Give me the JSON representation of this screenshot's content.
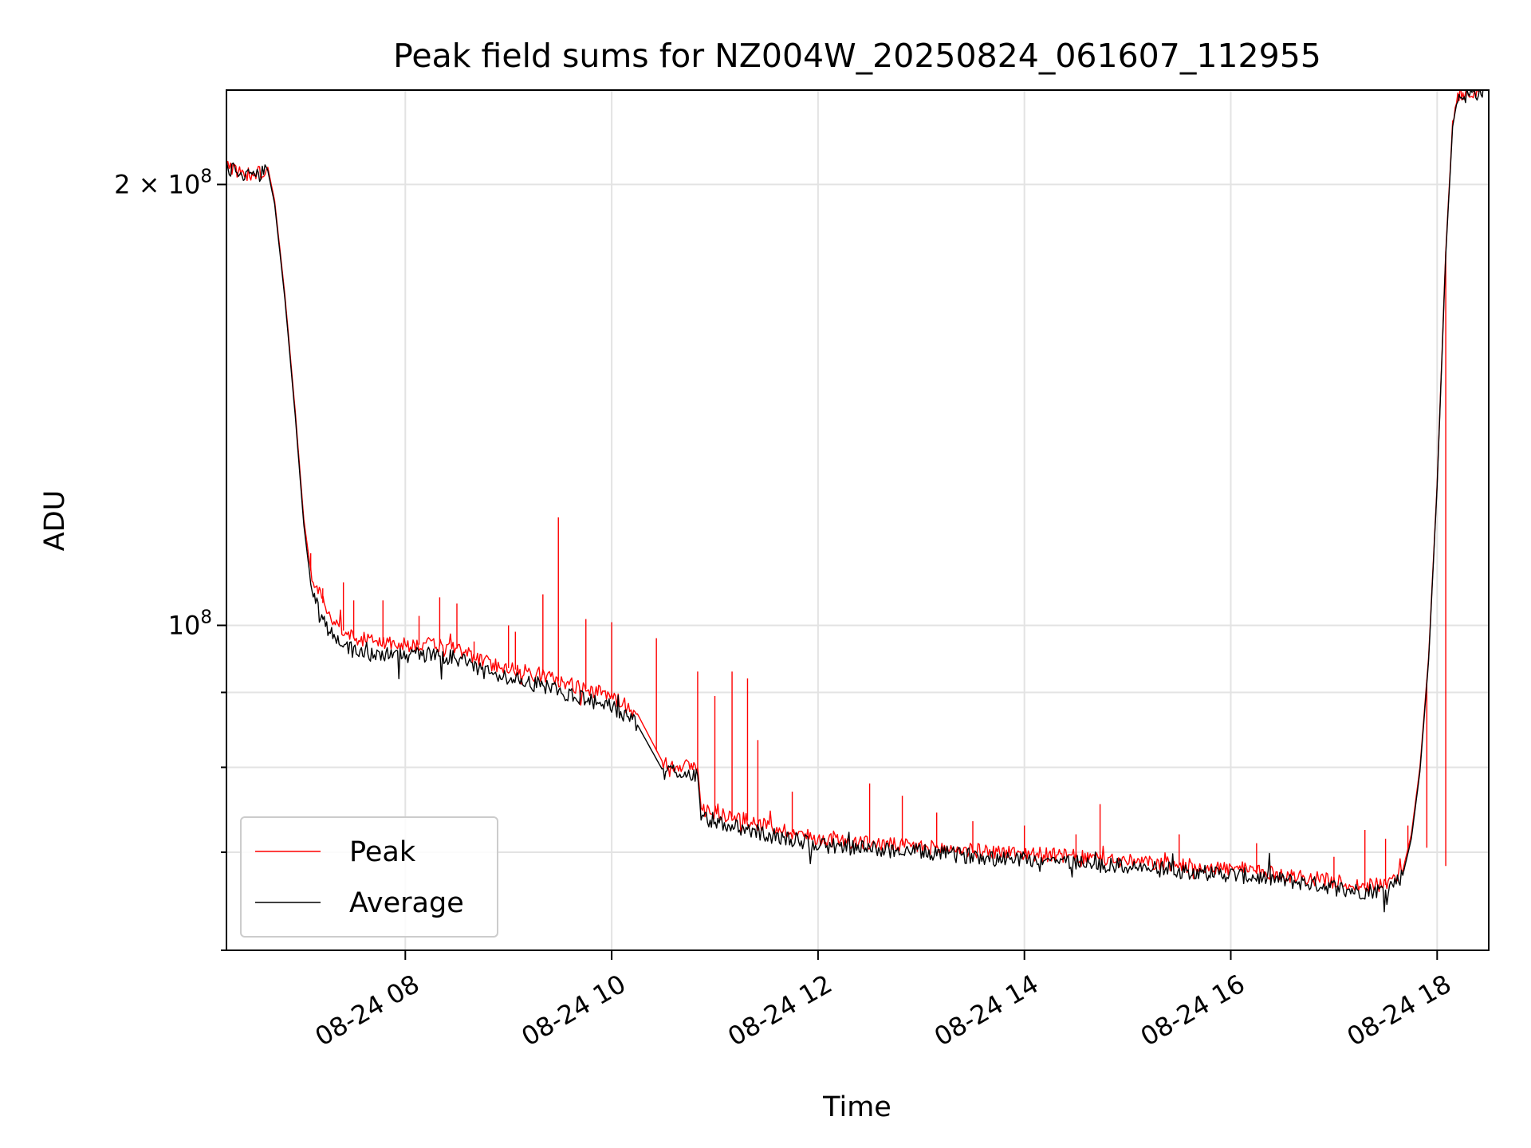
{
  "chart_data": {
    "type": "line",
    "title": "Peak field sums for NZ004W_20250824_061607_112955",
    "xlabel": "Time",
    "ylabel": "ADU",
    "x_axis": {
      "type": "time",
      "range": [
        "2025-08-24 06:16",
        "2025-08-24 18:30"
      ],
      "ticks": [
        {
          "value": "2025-08-24 08:00",
          "label": "08-24 08"
        },
        {
          "value": "2025-08-24 10:00",
          "label": "08-24 10"
        },
        {
          "value": "2025-08-24 12:00",
          "label": "08-24 12"
        },
        {
          "value": "2025-08-24 14:00",
          "label": "08-24 14"
        },
        {
          "value": "2025-08-24 16:00",
          "label": "08-24 16"
        },
        {
          "value": "2025-08-24 18:00",
          "label": "08-24 18"
        }
      ]
    },
    "y_axis": {
      "scale": "log",
      "range": [
        60000000,
        232000000
      ],
      "major_ticks": [
        {
          "value": 100000000,
          "label_base": "10",
          "label_exp": "8",
          "label_prefix": ""
        },
        {
          "value": 200000000,
          "label_base": "10",
          "label_exp": "8",
          "label_prefix": "2 × "
        }
      ],
      "minor_ticks": [
        60000000,
        70000000,
        80000000,
        90000000
      ]
    },
    "grid": true,
    "legend": {
      "position": "lower-left"
    },
    "series": [
      {
        "name": "Peak",
        "color": "#ff0000",
        "points": [
          [
            "2025-08-24 06:16",
            206000000
          ],
          [
            "2025-08-24 06:20",
            205000000
          ],
          [
            "2025-08-24 06:28",
            203500000
          ],
          [
            "2025-08-24 06:36",
            204000000
          ],
          [
            "2025-08-24 06:40",
            205500000
          ],
          [
            "2025-08-24 06:44",
            195000000
          ],
          [
            "2025-08-24 06:50",
            168000000
          ],
          [
            "2025-08-24 06:56",
            140000000
          ],
          [
            "2025-08-24 07:01",
            118000000
          ],
          [
            "2025-08-24 07:05",
            109000000
          ],
          [
            "2025-08-24 07:10",
            105000000
          ],
          [
            "2025-08-24 07:15",
            101500000
          ],
          [
            "2025-08-24 07:20",
            100000000
          ],
          [
            "2025-08-24 07:30",
            98000000
          ],
          [
            "2025-08-24 07:45",
            97500000
          ],
          [
            "2025-08-24 08:00",
            97000000
          ],
          [
            "2025-08-24 08:15",
            97000000
          ],
          [
            "2025-08-24 08:30",
            96500000
          ],
          [
            "2025-08-24 08:45",
            94500000
          ],
          [
            "2025-08-24 09:00",
            93500000
          ],
          [
            "2025-08-24 09:20",
            92500000
          ],
          [
            "2025-08-24 09:30",
            91500000
          ],
          [
            "2025-08-24 09:45",
            90500000
          ],
          [
            "2025-08-24 10:00",
            89500000
          ],
          [
            "2025-08-24 10:15",
            87000000
          ],
          [
            "2025-08-24 10:30",
            80500000
          ],
          [
            "2025-08-24 10:50",
            80000000
          ],
          [
            "2025-08-24 10:52",
            75000000
          ],
          [
            "2025-08-24 11:10",
            74000000
          ],
          [
            "2025-08-24 11:30",
            73000000
          ],
          [
            "2025-08-24 12:00",
            71500000
          ],
          [
            "2025-08-24 12:30",
            71000000
          ],
          [
            "2025-08-24 13:00",
            70600000
          ],
          [
            "2025-08-24 13:30",
            70200000
          ],
          [
            "2025-08-24 14:00",
            69900000
          ],
          [
            "2025-08-24 14:30",
            69500000
          ],
          [
            "2025-08-24 15:00",
            69000000
          ],
          [
            "2025-08-24 15:30",
            68600000
          ],
          [
            "2025-08-24 16:00",
            68200000
          ],
          [
            "2025-08-24 16:30",
            67600000
          ],
          [
            "2025-08-24 17:00",
            66900000
          ],
          [
            "2025-08-24 17:15",
            66400000
          ],
          [
            "2025-08-24 17:30",
            66500000
          ],
          [
            "2025-08-24 17:40",
            68000000
          ],
          [
            "2025-08-24 17:45",
            72000000
          ],
          [
            "2025-08-24 17:50",
            80000000
          ],
          [
            "2025-08-24 17:55",
            95000000
          ],
          [
            "2025-08-24 18:00",
            125000000
          ],
          [
            "2025-08-24 18:05",
            180000000
          ],
          [
            "2025-08-24 18:09",
            220000000
          ],
          [
            "2025-08-24 18:12",
            230000000
          ],
          [
            "2025-08-24 18:30",
            232000000
          ]
        ],
        "spikes": [
          [
            "2025-08-24 07:05",
            112000000
          ],
          [
            "2025-08-24 07:12",
            106000000
          ],
          [
            "2025-08-24 07:24",
            107000000
          ],
          [
            "2025-08-24 07:30",
            104000000
          ],
          [
            "2025-08-24 07:47",
            104000000
          ],
          [
            "2025-08-24 08:08",
            101500000
          ],
          [
            "2025-08-24 08:20",
            104500000
          ],
          [
            "2025-08-24 08:30",
            103500000
          ],
          [
            "2025-08-24 08:40",
            97500000
          ],
          [
            "2025-08-24 09:00",
            100000000
          ],
          [
            "2025-08-24 09:04",
            99000000
          ],
          [
            "2025-08-24 09:20",
            105000000
          ],
          [
            "2025-08-24 09:29",
            118500000
          ],
          [
            "2025-08-24 09:45",
            101000000
          ],
          [
            "2025-08-24 10:00",
            100500000
          ],
          [
            "2025-08-24 10:26",
            98000000
          ],
          [
            "2025-08-24 10:50",
            93000000
          ],
          [
            "2025-08-24 11:00",
            89500000
          ],
          [
            "2025-08-24 11:10",
            93000000
          ],
          [
            "2025-08-24 11:19",
            92000000
          ],
          [
            "2025-08-24 11:25",
            83500000
          ],
          [
            "2025-08-24 11:45",
            77000000
          ],
          [
            "2025-08-24 12:30",
            78000000
          ],
          [
            "2025-08-24 12:49",
            76500000
          ],
          [
            "2025-08-24 13:09",
            74500000
          ],
          [
            "2025-08-24 13:30",
            73500000
          ],
          [
            "2025-08-24 14:00",
            73000000
          ],
          [
            "2025-08-24 14:30",
            72000000
          ],
          [
            "2025-08-24 14:44",
            75500000
          ],
          [
            "2025-08-24 15:30",
            72000000
          ],
          [
            "2025-08-24 16:15",
            71000000
          ],
          [
            "2025-08-24 17:00",
            69500000
          ],
          [
            "2025-08-24 17:18",
            72500000
          ],
          [
            "2025-08-24 17:30",
            71500000
          ],
          [
            "2025-08-24 17:43",
            73000000
          ],
          [
            "2025-08-24 17:54",
            70500000
          ],
          [
            "2025-08-24 18:05",
            68500000
          ]
        ]
      },
      {
        "name": "Average",
        "color": "#000000",
        "points": [
          [
            "2025-08-24 06:16",
            205500000
          ],
          [
            "2025-08-24 06:20",
            204000000
          ],
          [
            "2025-08-24 06:28",
            202500000
          ],
          [
            "2025-08-24 06:36",
            203000000
          ],
          [
            "2025-08-24 06:40",
            204500000
          ],
          [
            "2025-08-24 06:44",
            194000000
          ],
          [
            "2025-08-24 06:50",
            167000000
          ],
          [
            "2025-08-24 06:56",
            139000000
          ],
          [
            "2025-08-24 07:01",
            117000000
          ],
          [
            "2025-08-24 07:05",
            107000000
          ],
          [
            "2025-08-24 07:10",
            102500000
          ],
          [
            "2025-08-24 07:15",
            99500000
          ],
          [
            "2025-08-24 07:20",
            97500000
          ],
          [
            "2025-08-24 07:30",
            96000000
          ],
          [
            "2025-08-24 07:45",
            95500000
          ],
          [
            "2025-08-24 08:00",
            95500000
          ],
          [
            "2025-08-24 08:15",
            95500000
          ],
          [
            "2025-08-24 08:30",
            95000000
          ],
          [
            "2025-08-24 08:45",
            93000000
          ],
          [
            "2025-08-24 09:00",
            92000000
          ],
          [
            "2025-08-24 09:20",
            91000000
          ],
          [
            "2025-08-24 09:30",
            90000000
          ],
          [
            "2025-08-24 09:45",
            89000000
          ],
          [
            "2025-08-24 10:00",
            88000000
          ],
          [
            "2025-08-24 10:15",
            85500000
          ],
          [
            "2025-08-24 10:30",
            79500000
          ],
          [
            "2025-08-24 10:50",
            79000000
          ],
          [
            "2025-08-24 10:52",
            74000000
          ],
          [
            "2025-08-24 11:10",
            73000000
          ],
          [
            "2025-08-24 11:30",
            72000000
          ],
          [
            "2025-08-24 12:00",
            70800000
          ],
          [
            "2025-08-24 12:30",
            70400000
          ],
          [
            "2025-08-24 13:00",
            70000000
          ],
          [
            "2025-08-24 13:30",
            69600000
          ],
          [
            "2025-08-24 14:00",
            69300000
          ],
          [
            "2025-08-24 14:30",
            68900000
          ],
          [
            "2025-08-24 15:00",
            68400000
          ],
          [
            "2025-08-24 15:30",
            68000000
          ],
          [
            "2025-08-24 16:00",
            67600000
          ],
          [
            "2025-08-24 16:30",
            67000000
          ],
          [
            "2025-08-24 17:00",
            66300000
          ],
          [
            "2025-08-24 17:15",
            65800000
          ],
          [
            "2025-08-24 17:30",
            66000000
          ],
          [
            "2025-08-24 17:40",
            67500000
          ],
          [
            "2025-08-24 17:45",
            71500000
          ],
          [
            "2025-08-24 17:50",
            79500000
          ],
          [
            "2025-08-24 17:55",
            94500000
          ],
          [
            "2025-08-24 18:00",
            124500000
          ],
          [
            "2025-08-24 18:05",
            179000000
          ],
          [
            "2025-08-24 18:09",
            219000000
          ],
          [
            "2025-08-24 18:12",
            229500000
          ],
          [
            "2025-08-24 18:30",
            232000000
          ]
        ]
      }
    ]
  }
}
